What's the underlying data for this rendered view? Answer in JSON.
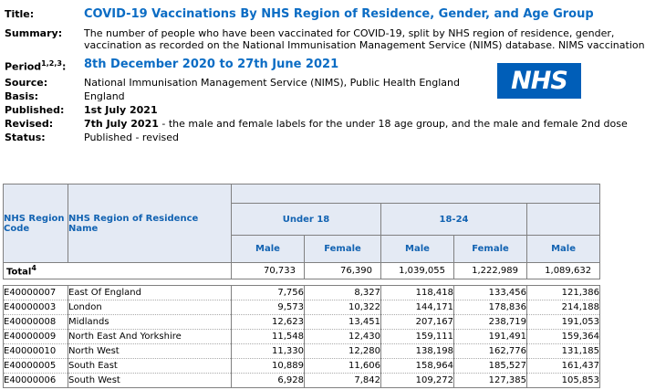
{
  "meta": {
    "title_label": "Title:",
    "title": "COVID-19 Vaccinations By NHS Region of Residence, Gender, and Age Group",
    "summary_label": "Summary:",
    "summary_line1": "The number of people who have been vaccinated for COVID-19, split by NHS region of residence, gender,",
    "summary_line2": "vaccination as recorded on the National Immunisation Management Service (NIMS) database. NIMS vaccination",
    "period_label": "Period",
    "period_sup": "1,2,3",
    "period_colon": ":",
    "period": "8th December 2020 to 27th June 2021",
    "source_label": "Source:",
    "source": "National Immunisation Management Service (NIMS), Public Health England",
    "basis_label": "Basis:",
    "basis": "England",
    "published_label": "Published:",
    "published": "1st July 2021",
    "revised_label": "Revised:",
    "revised_date": "7th July 2021",
    "revised_note": " - the male and female labels for the under 18 age group, and the male and female 2nd dose",
    "status_label": "Status:",
    "status": "Published - revised"
  },
  "logo": {
    "text": "NHS",
    "bg_color": "#005EB8"
  },
  "colors": {
    "accent_blue": "#0b6cc4",
    "table_header_blue": "#1263b2",
    "header_bg": "#e4eaf4",
    "border_gray": "#808080",
    "nhs_blue": "#005EB8"
  },
  "table": {
    "col1_header": "NHS Region Code",
    "col2_header": "NHS Region of Residence Name",
    "age_groups": [
      {
        "label": "Under 18"
      },
      {
        "label": "18-24"
      },
      {
        "label": ""
      }
    ],
    "male_label": "Male",
    "female_label": "Female",
    "total_label": "Total",
    "total_sup": "4",
    "total_values": [
      "70,733",
      "76,390",
      "1,039,055",
      "1,222,989",
      "1,089,632"
    ],
    "rows": [
      {
        "code": "E40000007",
        "name": "East Of England",
        "values": [
          "7,756",
          "8,327",
          "118,418",
          "133,456",
          "121,386"
        ]
      },
      {
        "code": "E40000003",
        "name": "London",
        "values": [
          "9,573",
          "10,322",
          "144,171",
          "178,836",
          "214,188"
        ]
      },
      {
        "code": "E40000008",
        "name": "Midlands",
        "values": [
          "12,623",
          "13,451",
          "207,167",
          "238,719",
          "191,053"
        ]
      },
      {
        "code": "E40000009",
        "name": "North East And Yorkshire",
        "values": [
          "11,548",
          "12,430",
          "159,111",
          "191,491",
          "159,364"
        ]
      },
      {
        "code": "E40000010",
        "name": "North West",
        "values": [
          "11,330",
          "12,280",
          "138,198",
          "162,776",
          "131,185"
        ]
      },
      {
        "code": "E40000005",
        "name": "South East",
        "values": [
          "10,889",
          "11,606",
          "158,964",
          "185,527",
          "161,437"
        ]
      },
      {
        "code": "E40000006",
        "name": "South West",
        "values": [
          "6,928",
          "7,842",
          "109,272",
          "127,385",
          "105,853"
        ]
      }
    ]
  }
}
